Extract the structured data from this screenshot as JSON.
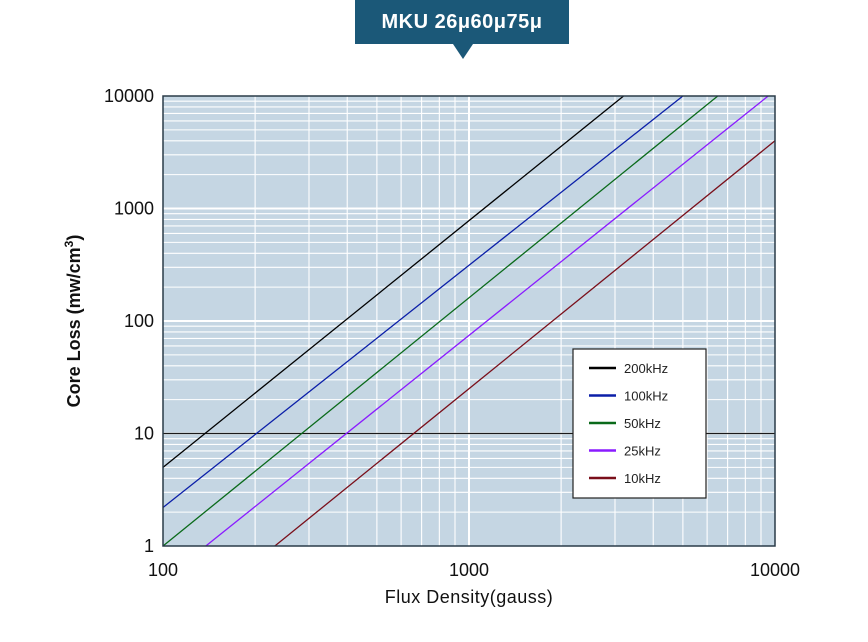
{
  "title": "MKU 26μ60μ75μ",
  "chart_data": {
    "type": "line",
    "title": "MKU 26μ60μ75μ",
    "xlabel": "Flux Density(gauss)",
    "ylabel_main": "Core Loss (mw/cm",
    "ylabel_sup": "3",
    "ylabel_tail": ")",
    "xscale": "log",
    "yscale": "log",
    "xlim": [
      100,
      10000
    ],
    "ylim": [
      1,
      10000
    ],
    "x_ticks": [
      "100",
      "1000",
      "10000"
    ],
    "y_ticks": [
      "1",
      "10",
      "100",
      "1000",
      "10000"
    ],
    "grid": true,
    "legend_position": "lower-right",
    "reference_line_y": 10,
    "series": [
      {
        "name": "200kHz",
        "color": "#000000",
        "x": [
          100,
          3200
        ],
        "y": [
          5,
          10000
        ]
      },
      {
        "name": "100kHz",
        "color": "#0b1fa8",
        "x": [
          100,
          5000
        ],
        "y": [
          2.2,
          10000
        ]
      },
      {
        "name": "50kHz",
        "color": "#0a6a1a",
        "x": [
          100,
          6500
        ],
        "y": [
          1,
          10000
        ]
      },
      {
        "name": "25kHz",
        "color": "#8a1bff",
        "x": [
          138,
          9500
        ],
        "y": [
          1,
          10000
        ]
      },
      {
        "name": "10kHz",
        "color": "#7a0f1a",
        "x": [
          232,
          10000
        ],
        "y": [
          1,
          4000
        ]
      }
    ]
  }
}
